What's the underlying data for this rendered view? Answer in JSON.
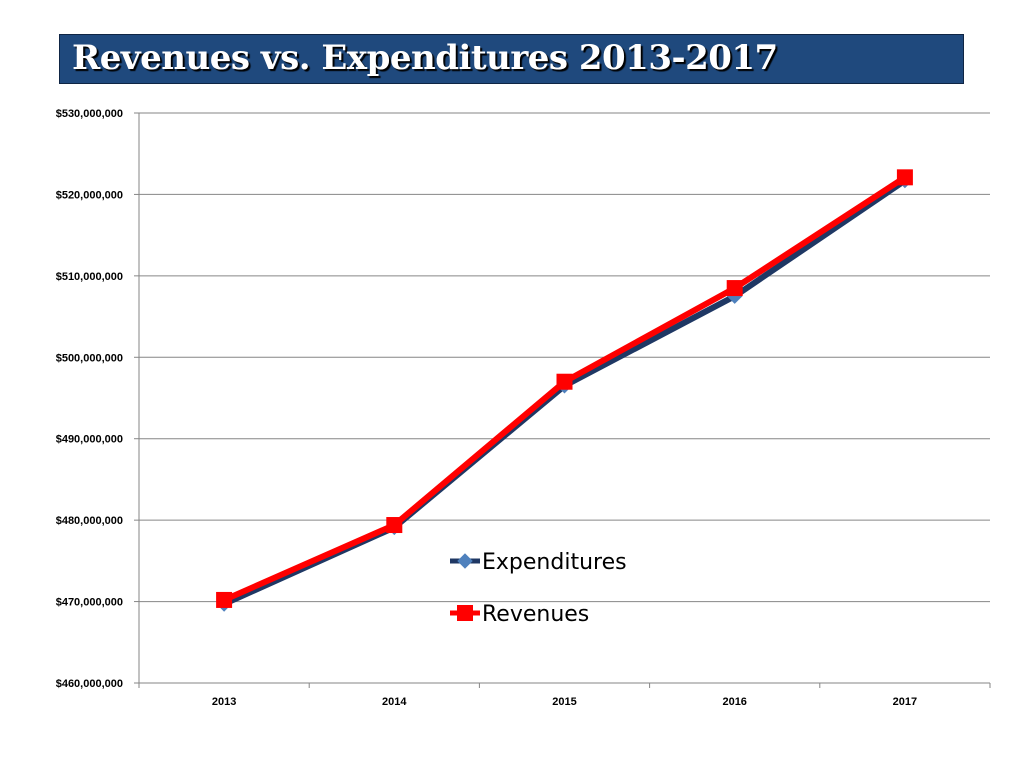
{
  "title": "Revenues vs. Expenditures 2013-2017",
  "colors": {
    "title_bg": "#1f497d",
    "title_text": "#ffffff",
    "expenditures_line": "#1f3864",
    "expenditures_marker": "#4f81bd",
    "revenues": "#ff0000",
    "gridline": "#868686"
  },
  "chart_data": {
    "type": "line",
    "title": "Revenues vs. Expenditures 2013-2017",
    "categories": [
      "2013",
      "2014",
      "2015",
      "2016",
      "2017"
    ],
    "series": [
      {
        "name": "Expenditures",
        "values": [
          469700000,
          479100000,
          496500000,
          507500000,
          521700000
        ],
        "marker": "diamond-icon"
      },
      {
        "name": "Revenues",
        "values": [
          470200000,
          479400000,
          497000000,
          508500000,
          522100000
        ],
        "marker": "square-icon"
      }
    ],
    "ylim": [
      460000000,
      530000000
    ],
    "y_ticks": [
      "$460,000,000",
      "$470,000,000",
      "$480,000,000",
      "$490,000,000",
      "$500,000,000",
      "$510,000,000",
      "$520,000,000",
      "$530,000,000"
    ],
    "y_tick_step": 10000000,
    "grid": true,
    "legend": "center-right"
  }
}
